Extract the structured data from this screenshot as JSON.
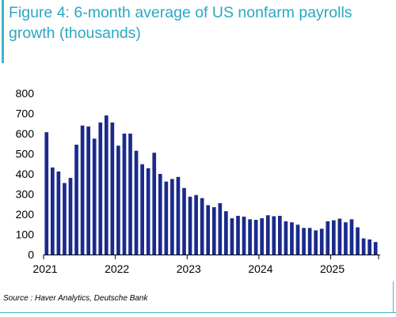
{
  "title": "Figure 4: 6-month average of US nonfarm payrolls growth (thousands)",
  "source": "Source : Haver Analytics, Deutsche Bank",
  "colors": {
    "bar": "#1a2b8c",
    "title": "#2aa7c4",
    "accent_line": "#40b6cf"
  },
  "chart_data": {
    "type": "bar",
    "title": "Figure 4: 6-month average of US nonfarm payrolls growth (thousands)",
    "xlabel": "",
    "ylabel": "",
    "ylim": [
      0,
      800
    ],
    "yticks": [
      0,
      100,
      200,
      300,
      400,
      500,
      600,
      700,
      800
    ],
    "xtick_labels": [
      "2021",
      "2022",
      "2023",
      "2024",
      "2025"
    ],
    "x_start": "2021-01",
    "frequency": "monthly",
    "grid": false,
    "legend": "none",
    "categories": [
      "2021-01",
      "2021-02",
      "2021-03",
      "2021-04",
      "2021-05",
      "2021-06",
      "2021-07",
      "2021-08",
      "2021-09",
      "2021-10",
      "2021-11",
      "2021-12",
      "2022-01",
      "2022-02",
      "2022-03",
      "2022-04",
      "2022-05",
      "2022-06",
      "2022-07",
      "2022-08",
      "2022-09",
      "2022-10",
      "2022-11",
      "2022-12",
      "2023-01",
      "2023-02",
      "2023-03",
      "2023-04",
      "2023-05",
      "2023-06",
      "2023-07",
      "2023-08",
      "2023-09",
      "2023-10",
      "2023-11",
      "2023-12",
      "2024-01",
      "2024-02",
      "2024-03",
      "2024-04",
      "2024-05",
      "2024-06",
      "2024-07",
      "2024-08",
      "2024-09",
      "2024-10",
      "2024-11",
      "2024-12",
      "2025-01",
      "2025-02",
      "2025-03",
      "2025-04",
      "2025-05",
      "2025-06",
      "2025-07",
      "2025-08"
    ],
    "values": [
      607,
      432,
      412,
      355,
      380,
      545,
      640,
      635,
      575,
      655,
      690,
      655,
      540,
      600,
      600,
      515,
      448,
      428,
      505,
      400,
      362,
      375,
      385,
      330,
      287,
      295,
      280,
      245,
      235,
      255,
      215,
      180,
      192,
      188,
      175,
      172,
      180,
      195,
      190,
      192,
      165,
      160,
      148,
      132,
      132,
      120,
      128,
      165,
      170,
      178,
      160,
      175,
      135,
      80,
      75,
      62
    ]
  }
}
